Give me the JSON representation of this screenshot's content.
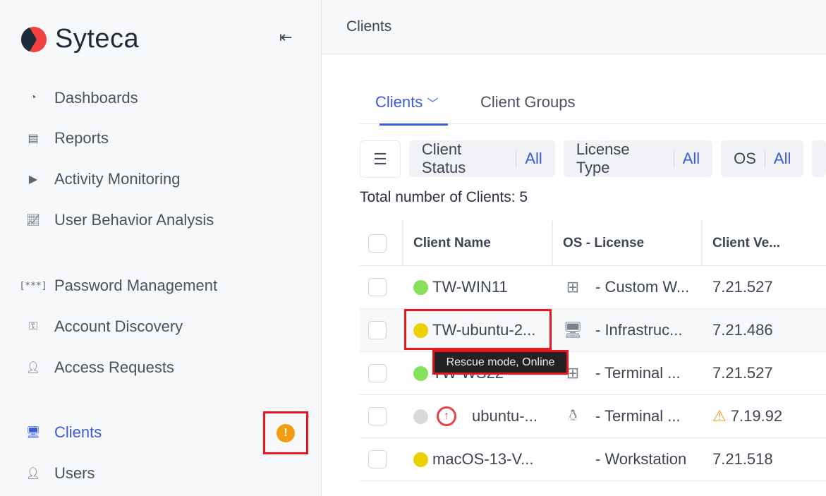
{
  "app": {
    "brand": "Syteca",
    "accent": "#3b5bdb"
  },
  "sidebar": {
    "items": [
      {
        "label": "Dashboards",
        "icon": "pie-chart-icon"
      },
      {
        "label": "Reports",
        "icon": "document-icon"
      },
      {
        "label": "Activity Monitoring",
        "icon": "play-icon"
      },
      {
        "label": "User Behavior Analysis",
        "icon": "trend-chart-icon"
      },
      {
        "label": "Password Management",
        "icon": "password-icon",
        "glyph": "[***]"
      },
      {
        "label": "Account Discovery",
        "icon": "key-icon"
      },
      {
        "label": "Access Requests",
        "icon": "user-request-icon"
      },
      {
        "label": "Clients",
        "icon": "monitor-icon",
        "active": true,
        "badge": "!"
      },
      {
        "label": "Users",
        "icon": "user-icon"
      }
    ]
  },
  "header": {
    "title": "Clients"
  },
  "tabs": [
    {
      "label": "Clients",
      "active": true
    },
    {
      "label": "Client Groups"
    }
  ],
  "filters": [
    {
      "label": "Client Status",
      "value": "All"
    },
    {
      "label": "License Type",
      "value": "All"
    },
    {
      "label": "OS",
      "value": "All"
    }
  ],
  "total": "Total number of Clients: 5",
  "table": {
    "columns": [
      "Client Name",
      "OS - License",
      "Client Ve..."
    ],
    "rows": [
      {
        "status": "#86e05b",
        "name": "TW-WIN11",
        "os": "windows-icon",
        "license": "- Custom W...",
        "version": "7.21.527"
      },
      {
        "status": "#ebd200",
        "name": "TW-ubuntu-2...",
        "os": "linux-monitor-icon",
        "license": "- Infrastruc...",
        "version": "7.21.486"
      },
      {
        "status": "#86e05b",
        "name": "TW-WS22",
        "os": "windows-icon",
        "license": "- Terminal ...",
        "version": "7.21.527"
      },
      {
        "status": "#d9d9d9",
        "name": "ubuntu-...",
        "os": "linux-icon",
        "license": "- Terminal ...",
        "version": "7.19.92",
        "update": true,
        "warning": true
      },
      {
        "status": "#ebd200",
        "name": "macOS-13-V...",
        "os": "apple-icon",
        "license": "- Workstation",
        "version": "7.21.518"
      }
    ]
  },
  "tooltip": "Rescue mode, Online"
}
